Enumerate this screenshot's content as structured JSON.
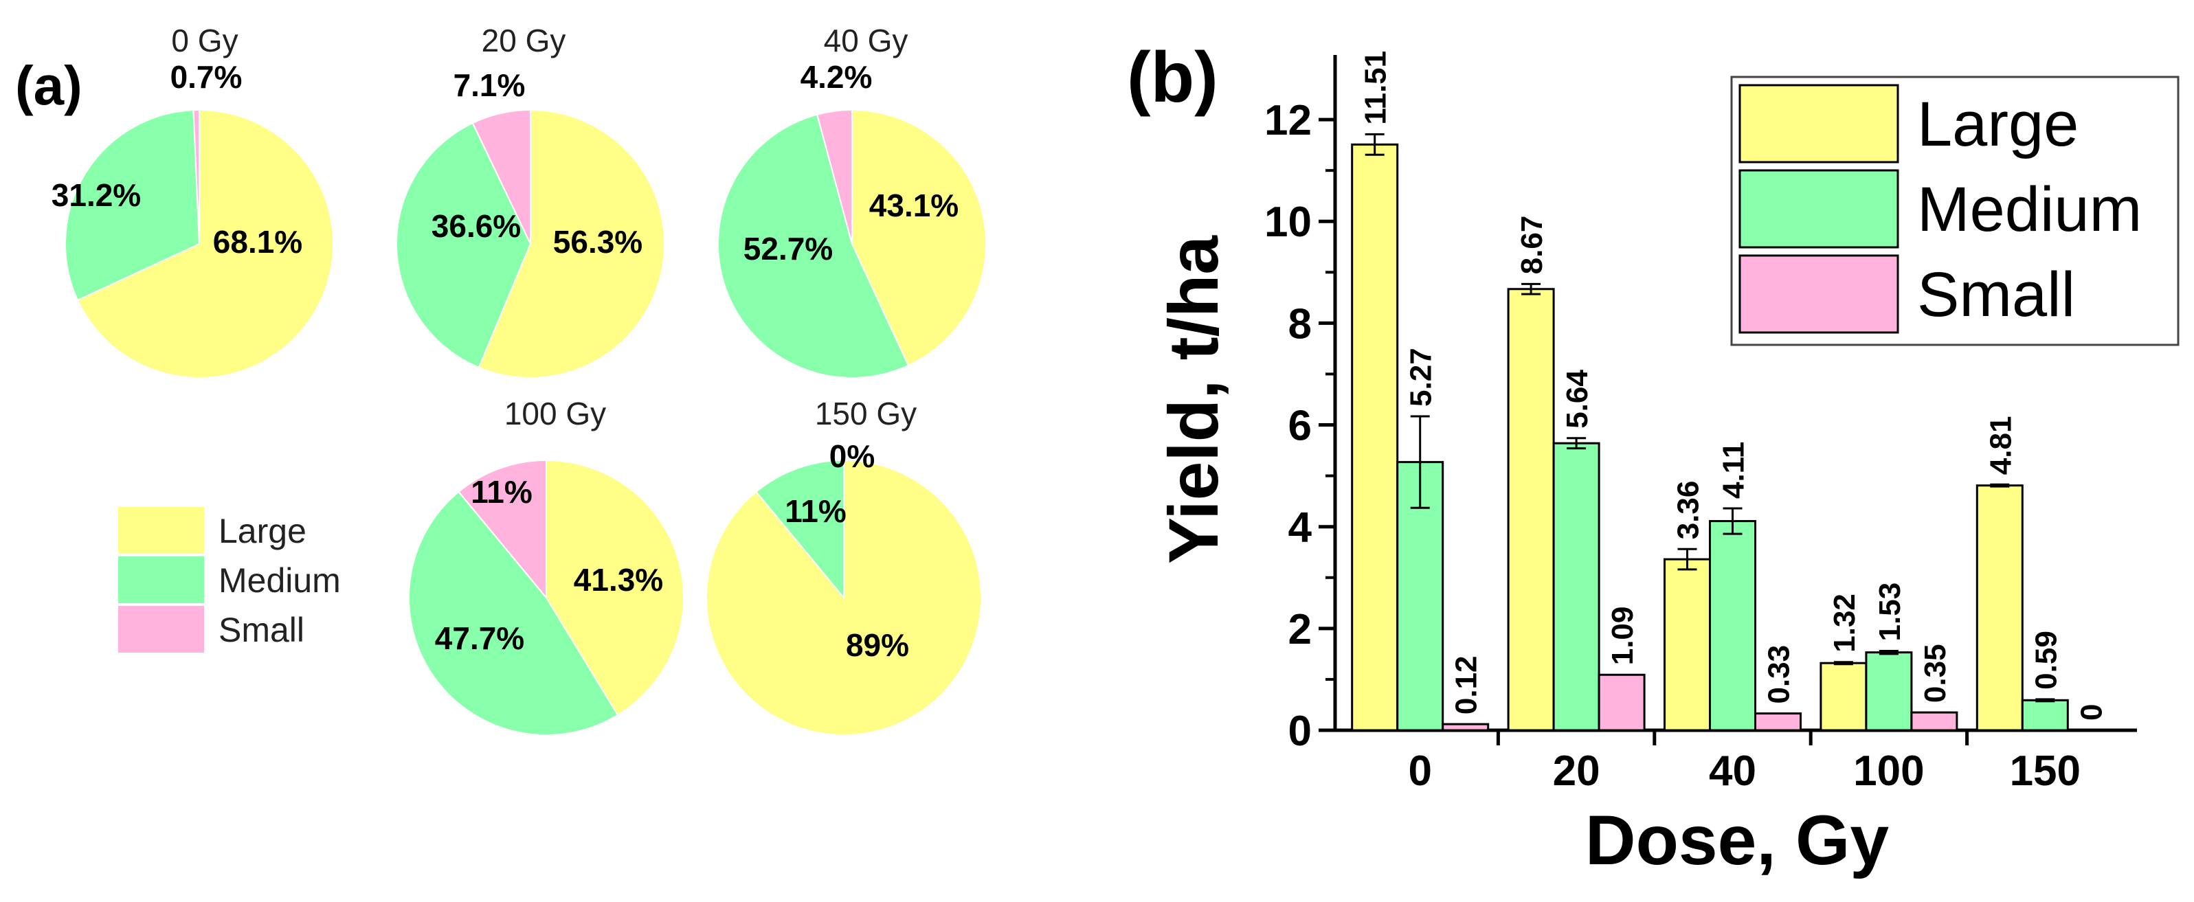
{
  "panel_a": {
    "label": "(a)",
    "legend": [
      {
        "name": "Large",
        "color": "#ffff88"
      },
      {
        "name": "Medium",
        "color": "#88ffaa"
      },
      {
        "name": "Small",
        "color": "#ffb3dd"
      }
    ]
  },
  "panel_b": {
    "label": "(b)"
  },
  "chart_data": [
    {
      "type": "pie",
      "title": "0 Gy",
      "categories": [
        "Large",
        "Medium",
        "Small"
      ],
      "values": [
        68.1,
        31.2,
        0.7
      ],
      "labels": [
        "68.1%",
        "31.2%",
        "0.7%"
      ]
    },
    {
      "type": "pie",
      "title": "20 Gy",
      "categories": [
        "Large",
        "Medium",
        "Small"
      ],
      "values": [
        56.3,
        36.6,
        7.1
      ],
      "labels": [
        "56.3%",
        "36.6%",
        "7.1%"
      ]
    },
    {
      "type": "pie",
      "title": "40 Gy",
      "categories": [
        "Large",
        "Medium",
        "Small"
      ],
      "values": [
        43.1,
        52.7,
        4.2
      ],
      "labels": [
        "43.1%",
        "52.7%",
        "4.2%"
      ]
    },
    {
      "type": "pie",
      "title": "100 Gy",
      "categories": [
        "Large",
        "Medium",
        "Small"
      ],
      "values": [
        41.3,
        47.7,
        11
      ],
      "labels": [
        "41.3%",
        "47.7%",
        "11%"
      ]
    },
    {
      "type": "pie",
      "title": "150 Gy",
      "categories": [
        "Large",
        "Medium",
        "Small"
      ],
      "values": [
        89,
        11,
        0
      ],
      "labels": [
        "89%",
        "11%",
        "0%"
      ]
    },
    {
      "type": "bar",
      "xlabel": "Dose, Gy",
      "ylabel": "Yield, t/ha",
      "categories": [
        "0",
        "20",
        "40",
        "100",
        "150"
      ],
      "ylim": [
        0,
        13
      ],
      "yticks": [
        "0",
        "2",
        "4",
        "6",
        "8",
        "10",
        "12"
      ],
      "legend_position": "top-right",
      "series": [
        {
          "name": "Large",
          "color": "#ffff88",
          "values": [
            11.51,
            8.67,
            3.36,
            1.32,
            4.81
          ],
          "errors": [
            0.2,
            0.1,
            0.2,
            0.02,
            0.02
          ],
          "labels": [
            "11.51",
            "8.67",
            "3.36",
            "1.32",
            "4.81"
          ]
        },
        {
          "name": "Medium",
          "color": "#88ffaa",
          "values": [
            5.27,
            5.64,
            4.11,
            1.53,
            0.59
          ],
          "errors": [
            0.9,
            0.1,
            0.25,
            0.03,
            0.02
          ],
          "labels": [
            "5.27",
            "5.64",
            "4.11",
            "1.53",
            "0.59"
          ]
        },
        {
          "name": "Small",
          "color": "#ffb3dd",
          "values": [
            0.12,
            1.09,
            0.33,
            0.35,
            0
          ],
          "errors": [
            0,
            0,
            0,
            0,
            0
          ],
          "labels": [
            "0.12",
            "1.09",
            "0.33",
            "0.35",
            "0"
          ]
        }
      ]
    }
  ]
}
